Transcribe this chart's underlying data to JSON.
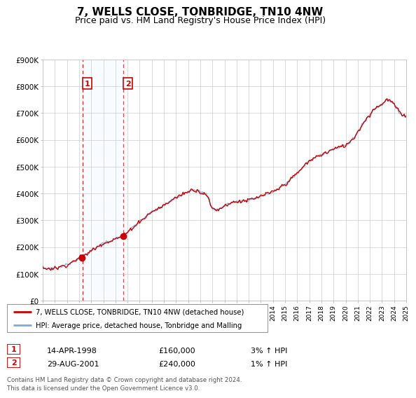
{
  "title": "7, WELLS CLOSE, TONBRIDGE, TN10 4NW",
  "subtitle": "Price paid vs. HM Land Registry's House Price Index (HPI)",
  "legend_line1": "7, WELLS CLOSE, TONBRIDGE, TN10 4NW (detached house)",
  "legend_line2": "HPI: Average price, detached house, Tonbridge and Malling",
  "footnote": "Contains HM Land Registry data © Crown copyright and database right 2024.\nThis data is licensed under the Open Government Licence v3.0.",
  "sale1_date": "14-APR-1998",
  "sale1_price": "£160,000",
  "sale1_hpi": "3% ↑ HPI",
  "sale2_date": "29-AUG-2001",
  "sale2_price": "£240,000",
  "sale2_hpi": "1% ↑ HPI",
  "hpi_color": "#7aabdb",
  "price_color": "#cc0000",
  "marker_color": "#cc0000",
  "sale1_year": 1998.28,
  "sale1_value": 160000,
  "sale2_year": 2001.65,
  "sale2_value": 240000,
  "ylim": [
    0,
    900000
  ],
  "xlim_start": 1995.0,
  "xlim_end": 2025.0,
  "background_color": "#ffffff",
  "plot_bg_color": "#ffffff",
  "grid_color": "#cccccc",
  "shade_color": "#ddeeff",
  "title_fontsize": 11,
  "subtitle_fontsize": 9
}
